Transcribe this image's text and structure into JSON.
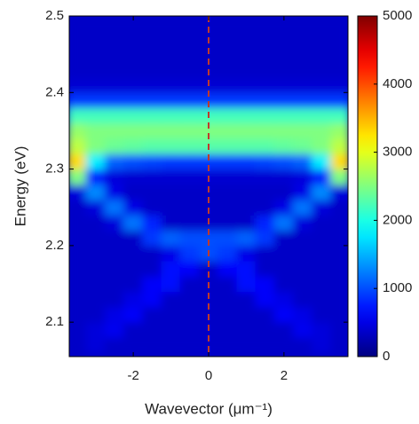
{
  "chart_data": {
    "type": "heatmap",
    "xlabel": "Wavevector (μm⁻¹)",
    "ylabel": "Energy (eV)",
    "xlim": [
      -3.7,
      3.7
    ],
    "xticks": [
      -2,
      0,
      2
    ],
    "ylim": [
      2.055,
      2.5
    ],
    "yticks": [
      2.1,
      2.2,
      2.3,
      2.4,
      2.5
    ],
    "clim": [
      0,
      5000
    ],
    "cticks": [
      0,
      1000,
      2000,
      3000,
      4000,
      5000
    ],
    "colormap": "jet",
    "vline": {
      "x": 0,
      "color": "#c0392b"
    },
    "x": [
      -3.5,
      -3,
      -2.5,
      -2,
      -1.5,
      -1,
      -0.5,
      0,
      0.5,
      1,
      1.5,
      2,
      2.5,
      3,
      3.5
    ],
    "y": [
      2.07,
      2.09,
      2.11,
      2.13,
      2.15,
      2.17,
      2.19,
      2.21,
      2.23,
      2.25,
      2.27,
      2.29,
      2.31,
      2.33,
      2.35,
      2.37,
      2.39,
      2.41,
      2.43,
      2.45,
      2.47,
      2.49
    ],
    "z": [
      [
        350,
        450,
        350,
        350,
        350,
        350,
        350,
        350,
        350,
        350,
        350,
        350,
        350,
        450,
        350
      ],
      [
        350,
        450,
        550,
        350,
        350,
        350,
        350,
        350,
        350,
        350,
        350,
        350,
        550,
        450,
        350
      ],
      [
        350,
        350,
        500,
        600,
        350,
        350,
        350,
        350,
        350,
        350,
        350,
        600,
        500,
        350,
        350
      ],
      [
        350,
        350,
        350,
        500,
        600,
        350,
        350,
        350,
        350,
        350,
        600,
        500,
        350,
        350,
        350
      ],
      [
        350,
        350,
        350,
        350,
        600,
        700,
        350,
        350,
        350,
        700,
        600,
        350,
        350,
        350,
        350
      ],
      [
        350,
        350,
        350,
        350,
        350,
        700,
        600,
        350,
        600,
        700,
        350,
        350,
        350,
        350,
        350
      ],
      [
        350,
        350,
        350,
        350,
        350,
        500,
        900,
        1000,
        900,
        500,
        350,
        350,
        350,
        350,
        350
      ],
      [
        350,
        350,
        350,
        350,
        900,
        1100,
        1000,
        1000,
        1000,
        1100,
        900,
        350,
        350,
        350,
        350
      ],
      [
        350,
        350,
        450,
        1200,
        800,
        350,
        350,
        350,
        350,
        350,
        800,
        1200,
        450,
        350,
        350
      ],
      [
        350,
        450,
        1200,
        500,
        350,
        350,
        350,
        350,
        350,
        350,
        350,
        500,
        1200,
        450,
        350
      ],
      [
        450,
        1300,
        500,
        350,
        350,
        350,
        350,
        350,
        350,
        350,
        350,
        350,
        500,
        1300,
        450
      ],
      [
        2500,
        700,
        450,
        400,
        400,
        400,
        400,
        400,
        400,
        400,
        400,
        400,
        450,
        700,
        2500
      ],
      [
        3300,
        1800,
        1100,
        1000,
        950,
        900,
        900,
        900,
        900,
        900,
        950,
        1000,
        1100,
        1800,
        3300
      ],
      [
        2800,
        2500,
        2400,
        2350,
        2300,
        2300,
        2300,
        2300,
        2300,
        2300,
        2300,
        2350,
        2400,
        2500,
        2800
      ],
      [
        2600,
        2500,
        2500,
        2500,
        2500,
        2500,
        2500,
        2500,
        2500,
        2500,
        2500,
        2500,
        2500,
        2500,
        2600
      ],
      [
        2200,
        2200,
        2200,
        2200,
        2200,
        2200,
        2200,
        2200,
        2200,
        2200,
        2200,
        2200,
        2200,
        2200,
        2200
      ],
      [
        900,
        900,
        900,
        900,
        900,
        900,
        900,
        900,
        900,
        900,
        900,
        900,
        900,
        900,
        900
      ],
      [
        400,
        400,
        400,
        400,
        400,
        400,
        400,
        400,
        400,
        400,
        400,
        400,
        400,
        400,
        400
      ],
      [
        350,
        350,
        350,
        350,
        350,
        350,
        350,
        350,
        350,
        350,
        350,
        350,
        350,
        350,
        350
      ],
      [
        350,
        350,
        350,
        350,
        350,
        350,
        350,
        350,
        350,
        350,
        350,
        350,
        350,
        350,
        350
      ],
      [
        350,
        350,
        350,
        350,
        350,
        350,
        350,
        350,
        350,
        350,
        350,
        350,
        350,
        350,
        350
      ],
      [
        350,
        350,
        350,
        350,
        350,
        350,
        350,
        350,
        350,
        350,
        350,
        350,
        350,
        350,
        350
      ]
    ]
  }
}
